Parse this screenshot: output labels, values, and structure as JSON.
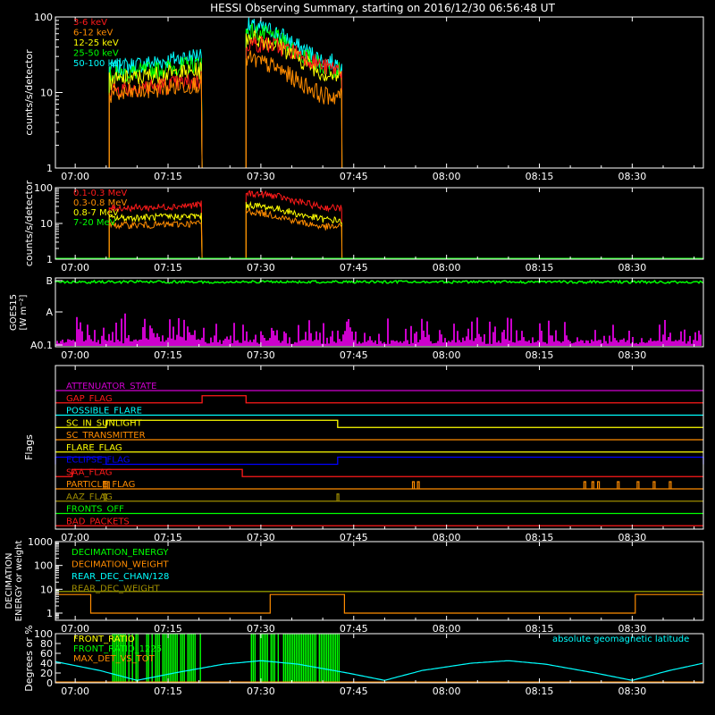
{
  "title": "HESSI Observing Summary, starting on 2016/12/30 06:56:48 UT",
  "colors": {
    "background": "#000000",
    "axes": "#ffffff",
    "red": "#ff1a1a",
    "orange": "#ff8c00",
    "yellow": "#ffff00",
    "green": "#00ff00",
    "cyan": "#00ffff",
    "magenta": "#ff00ff",
    "blue": "#0000ff",
    "olive": "#9e8c00",
    "purple": "#d000d0"
  },
  "time_axis": {
    "start_minutes": 416.8,
    "end_minutes": 521.5,
    "tick_labels": [
      "07:00",
      "07:15",
      "07:30",
      "07:45",
      "08:00",
      "08:15",
      "08:30"
    ],
    "tick_minutes": [
      420,
      435,
      450,
      465,
      480,
      495,
      510
    ]
  },
  "chart_data": [
    {
      "type": "line",
      "title": "HESSI Observing Summary, starting on 2016/12/30 06:56:48 UT",
      "ylabel": "counts/s/detector",
      "yscale": "log",
      "ylim": [
        1,
        100
      ],
      "ytick_labels": [
        "1",
        "10",
        "100"
      ],
      "legend_placement": "top-left",
      "observing_intervals": [
        [
          425.5,
          440.5
        ],
        [
          447.6,
          463.1
        ]
      ],
      "series": [
        {
          "name": "3-6 keV",
          "color": "#ff1a1a",
          "values": [
            [
              426,
              11
            ],
            [
              433,
              12
            ],
            [
              440,
              14
            ],
            [
              448,
              45
            ],
            [
              452,
              42
            ],
            [
              456,
              33
            ],
            [
              460,
              22
            ],
            [
              463,
              20
            ]
          ]
        },
        {
          "name": "6-12 keV",
          "color": "#ff8c00",
          "values": [
            [
              426,
              9
            ],
            [
              433,
              11
            ],
            [
              440,
              13
            ],
            [
              448,
              28
            ],
            [
              452,
              22
            ],
            [
              456,
              14
            ],
            [
              460,
              9
            ],
            [
              463,
              9
            ]
          ]
        },
        {
          "name": "12-25 keV",
          "color": "#ffff00",
          "values": [
            [
              426,
              14
            ],
            [
              433,
              17
            ],
            [
              440,
              19
            ],
            [
              448,
              55
            ],
            [
              452,
              45
            ],
            [
              456,
              28
            ],
            [
              460,
              18
            ],
            [
              463,
              16
            ]
          ]
        },
        {
          "name": "25-50 keV",
          "color": "#00ff00",
          "values": [
            [
              426,
              17
            ],
            [
              433,
              20
            ],
            [
              440,
              24
            ],
            [
              448,
              65
            ],
            [
              452,
              55
            ],
            [
              456,
              33
            ],
            [
              460,
              22
            ],
            [
              463,
              20
            ]
          ]
        },
        {
          "name": "50-100 keV",
          "color": "#00ffff",
          "values": [
            [
              426,
              21
            ],
            [
              433,
              25
            ],
            [
              440,
              31
            ],
            [
              448,
              75
            ],
            [
              452,
              65
            ],
            [
              456,
              40
            ],
            [
              460,
              26
            ],
            [
              463,
              24
            ]
          ]
        }
      ]
    },
    {
      "type": "line",
      "ylabel": "counts/s/detector",
      "yscale": "log",
      "ylim": [
        1,
        100
      ],
      "ytick_labels": [
        "1",
        "10",
        "100"
      ],
      "legend_placement": "top-left",
      "series": [
        {
          "name": "0.1-0.3 MeV",
          "color": "#ff1a1a",
          "values": [
            [
              426,
              27
            ],
            [
              433,
              28
            ],
            [
              440,
              33
            ],
            [
              448,
              70
            ],
            [
              452,
              60
            ],
            [
              456,
              40
            ],
            [
              460,
              28
            ],
            [
              463,
              27
            ]
          ]
        },
        {
          "name": "0.3-0.8 MeV",
          "color": "#ff8c00",
          "values": [
            [
              426,
              9
            ],
            [
              433,
              9
            ],
            [
              440,
              10
            ],
            [
              448,
              22
            ],
            [
              452,
              17
            ],
            [
              456,
              11
            ],
            [
              460,
              8
            ],
            [
              463,
              8
            ]
          ]
        },
        {
          "name": "0.8-7 MeV",
          "color": "#ffff00",
          "values": [
            [
              426,
              14
            ],
            [
              433,
              15
            ],
            [
              440,
              16
            ],
            [
              448,
              33
            ],
            [
              452,
              27
            ],
            [
              456,
              18
            ],
            [
              460,
              13
            ],
            [
              463,
              12
            ]
          ]
        },
        {
          "name": "7-20 MeV",
          "color": "#00ff00",
          "values": [
            [
              426,
              1
            ],
            [
              440,
              1
            ],
            [
              448,
              1
            ],
            [
              463,
              1
            ]
          ]
        }
      ]
    },
    {
      "type": "line",
      "ylabel": "GOES15 [W m⁻²]",
      "ytick_labels": [
        "A0.1",
        "A",
        "B"
      ],
      "series": [
        {
          "name": "GOES long",
          "color": "#00ff00",
          "description_value": "near B level throughout"
        },
        {
          "name": "GOES short",
          "color": "#ff00ff",
          "description_value": "noise near A0.1 level"
        }
      ]
    },
    {
      "type": "table",
      "ylabel": "Flags",
      "flags": [
        {
          "name": "ATTENUATOR_STATE",
          "color": "#d000d0",
          "high_intervals": []
        },
        {
          "name": "GAP_FLAG",
          "color": "#ff1a1a",
          "high_intervals": [
            [
              440.5,
              447.6
            ]
          ]
        },
        {
          "name": "POSSIBLE_FLARE",
          "color": "#00ffff",
          "high_intervals": []
        },
        {
          "name": "SC_IN_SUNLIGHT",
          "color": "#ffff00",
          "high_intervals": [
            [
              425.0,
              462.4
            ]
          ]
        },
        {
          "name": "SC_TRANSMITTER",
          "color": "#ff8c00",
          "high_intervals": []
        },
        {
          "name": "FLARE_FLAG",
          "color": "#ffff00",
          "high_intervals": []
        },
        {
          "name": "ECLIPSE_FLAG",
          "color": "#0000ff",
          "high_intervals": [
            [
              416.8,
              425.0
            ],
            [
              462.4,
              521.5
            ]
          ]
        },
        {
          "name": "SAA_FLAG",
          "color": "#ff1a1a",
          "high_intervals": [
            [
              419.5,
              447.0
            ]
          ]
        },
        {
          "name": "PARTICLE_FLAG",
          "color": "#ff8c00",
          "high_intervals": []
        },
        {
          "name": "AAZ_FLAG",
          "color": "#9e8c00",
          "high_intervals": []
        },
        {
          "name": "FRONTS_OFF",
          "color": "#00ff00",
          "high_intervals": []
        },
        {
          "name": "BAD_PACKETS",
          "color": "#ff1a1a",
          "high_intervals": []
        }
      ]
    },
    {
      "type": "line",
      "ylabel": "DECIMATION ENERGY or weight",
      "yscale": "log",
      "ylim": [
        0.5,
        1000
      ],
      "ytick_labels": [
        "1",
        "10",
        "100",
        "1000"
      ],
      "legend_placement": "top-left",
      "series": [
        {
          "name": "DECIMATION_ENERGY",
          "color": "#00ff00",
          "values": [
            [
              416.8,
              8
            ],
            [
              521.5,
              8
            ]
          ]
        },
        {
          "name": "DECIMATION_WEIGHT",
          "color": "#ff8c00",
          "values": [
            [
              416.8,
              6
            ],
            [
              422.5,
              6
            ],
            [
              422.5,
              1
            ],
            [
              451.5,
              1
            ],
            [
              451.5,
              6
            ],
            [
              463.5,
              6
            ],
            [
              463.5,
              1
            ],
            [
              510.5,
              1
            ],
            [
              510.5,
              6
            ],
            [
              521.5,
              6
            ]
          ]
        },
        {
          "name": "REAR_DEC_CHAN/128",
          "color": "#00ffff",
          "values": []
        },
        {
          "name": "REAR_DEC_WEIGHT",
          "color": "#9e8c00",
          "values": [
            [
              416.8,
              8
            ],
            [
              521.5,
              8
            ]
          ]
        }
      ]
    },
    {
      "type": "line",
      "ylabel": "Degrees or %",
      "ylim": [
        0,
        100
      ],
      "ytick_labels": [
        "0",
        "20",
        "40",
        "60",
        "80",
        "100"
      ],
      "legend_placement": "top-left",
      "annotations": [
        "absolute geomagnetic latitude"
      ],
      "series": [
        {
          "name": "FRONT_RATIO",
          "color": "#ffff00",
          "values": []
        },
        {
          "name": "FRONT_RATIO_1225",
          "color": "#00ff00",
          "values": []
        },
        {
          "name": "MAX_DET_VS_TOT",
          "color": "#ff8c00",
          "values": []
        },
        {
          "name": "absolute geomagnetic latitude",
          "color": "#00ffff",
          "values": [
            [
              416.8,
              43
            ],
            [
              424,
              25
            ],
            [
              430,
              5
            ],
            [
              436,
              20
            ],
            [
              444,
              38
            ],
            [
              450,
              45
            ],
            [
              456,
              38
            ],
            [
              464,
              20
            ],
            [
              470,
              5
            ],
            [
              476,
              25
            ],
            [
              484,
              40
            ],
            [
              490,
              45
            ],
            [
              496,
              38
            ],
            [
              504,
              20
            ],
            [
              510,
              5
            ],
            [
              516,
              25
            ],
            [
              521.5,
              40
            ]
          ]
        }
      ]
    }
  ]
}
